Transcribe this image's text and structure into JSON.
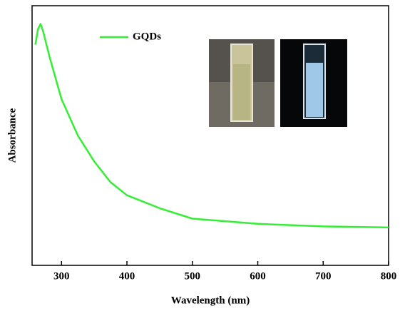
{
  "chart_data": {
    "type": "line",
    "x_label": "Wavelength (nm)",
    "y_label": "Absorbance",
    "xlim": [
      255,
      800
    ],
    "xticks": [
      300,
      400,
      500,
      600,
      700,
      800
    ],
    "ylim": [
      0,
      1
    ],
    "legend": "upper-left",
    "series": [
      {
        "name": "GQDs",
        "color": "#33ee33",
        "x": [
          260,
          264,
          268,
          272,
          282,
          300,
          325,
          350,
          375,
          400,
          450,
          500,
          550,
          600,
          650,
          700,
          750,
          800
        ],
        "values": [
          0.85,
          0.91,
          0.93,
          0.9,
          0.8,
          0.64,
          0.5,
          0.4,
          0.32,
          0.27,
          0.22,
          0.18,
          0.17,
          0.16,
          0.155,
          0.15,
          0.148,
          0.146
        ]
      }
    ]
  }
}
